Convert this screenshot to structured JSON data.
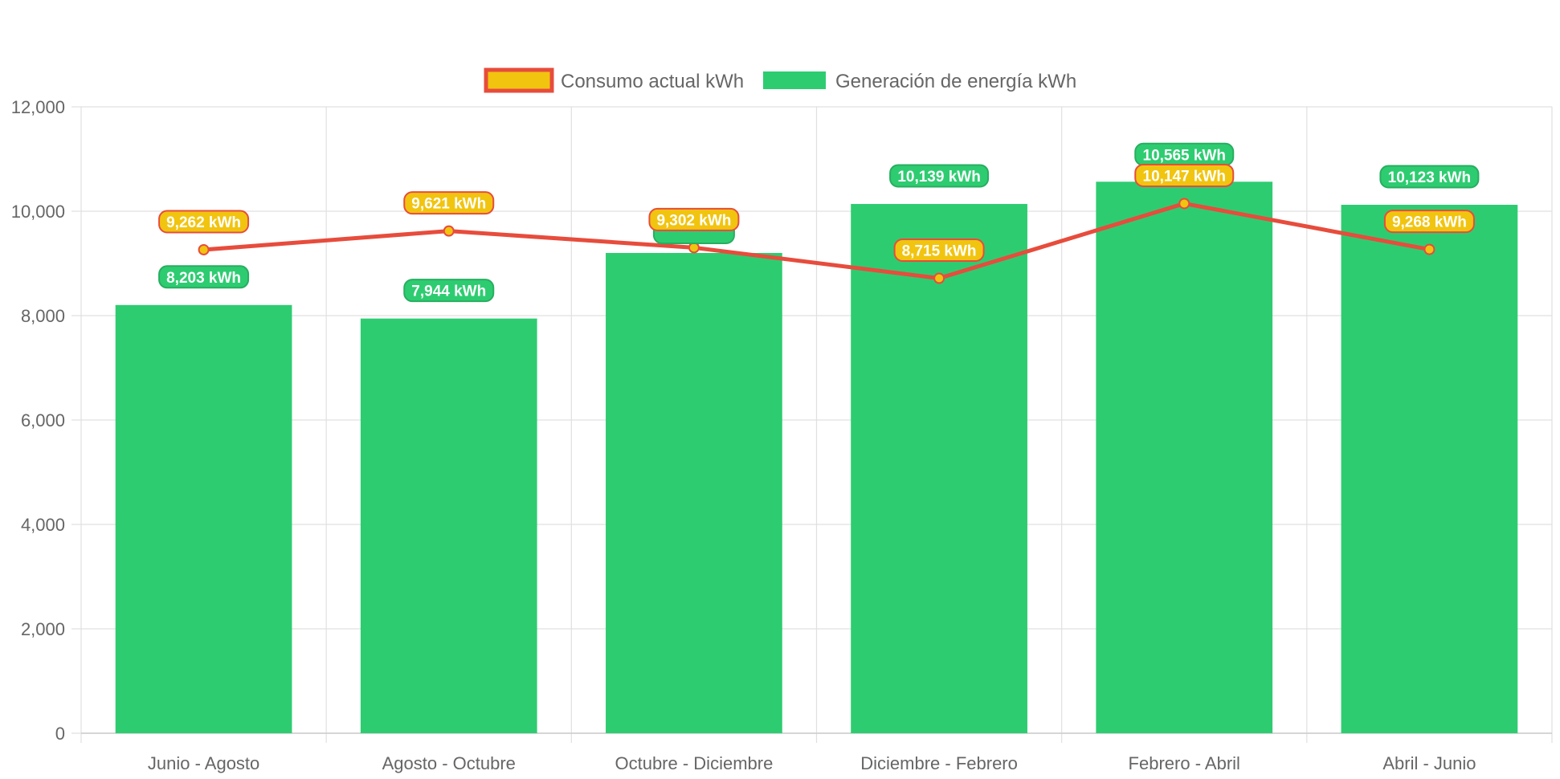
{
  "colors": {
    "generation_fill": "#2ecc71",
    "generation_border": "#27ae60",
    "consumption_line": "#e74c3c",
    "consumption_point": "#f1c40f",
    "grid": "#e0e0e0",
    "text": "#666666"
  },
  "legend": [
    {
      "label": "Consumo actual kWh",
      "fill": "#f1c40f",
      "stroke": "#e74c3c"
    },
    {
      "label": "Generación de energía kWh",
      "fill": "#2ecc71",
      "stroke": "#2ecc71"
    }
  ],
  "chart_data": {
    "type": "bar",
    "categories": [
      "Junio - Agosto",
      "Agosto - Octubre",
      "Octubre - Diciembre",
      "Diciembre - Febrero",
      "Febrero - Abril",
      "Abril - Junio"
    ],
    "series": [
      {
        "name": "Consumo actual kWh",
        "type": "line",
        "values": [
          9262,
          9621,
          9302,
          8715,
          10147,
          9268
        ],
        "labels": [
          "9,262 kWh",
          "9,621 kWh",
          "9,302 kWh",
          "8,715 kWh",
          "10,147 kWh",
          "9,268 kWh"
        ]
      },
      {
        "name": "Generación de energía kWh",
        "type": "bar",
        "values": [
          8203,
          7944,
          9200,
          10139,
          10565,
          10123
        ],
        "labels": [
          "8,203 kWh",
          "7,944 kWh",
          "",
          "10,139 kWh",
          "10,565 kWh",
          "10,123 kWh"
        ]
      }
    ],
    "ylim": [
      0,
      12000
    ],
    "yticks": [
      0,
      2000,
      4000,
      6000,
      8000,
      10000,
      12000
    ],
    "ytick_labels": [
      "0",
      "2,000",
      "4,000",
      "6,000",
      "8,000",
      "10,000",
      "12,000"
    ],
    "grid": true,
    "legend_position": "top-center"
  }
}
